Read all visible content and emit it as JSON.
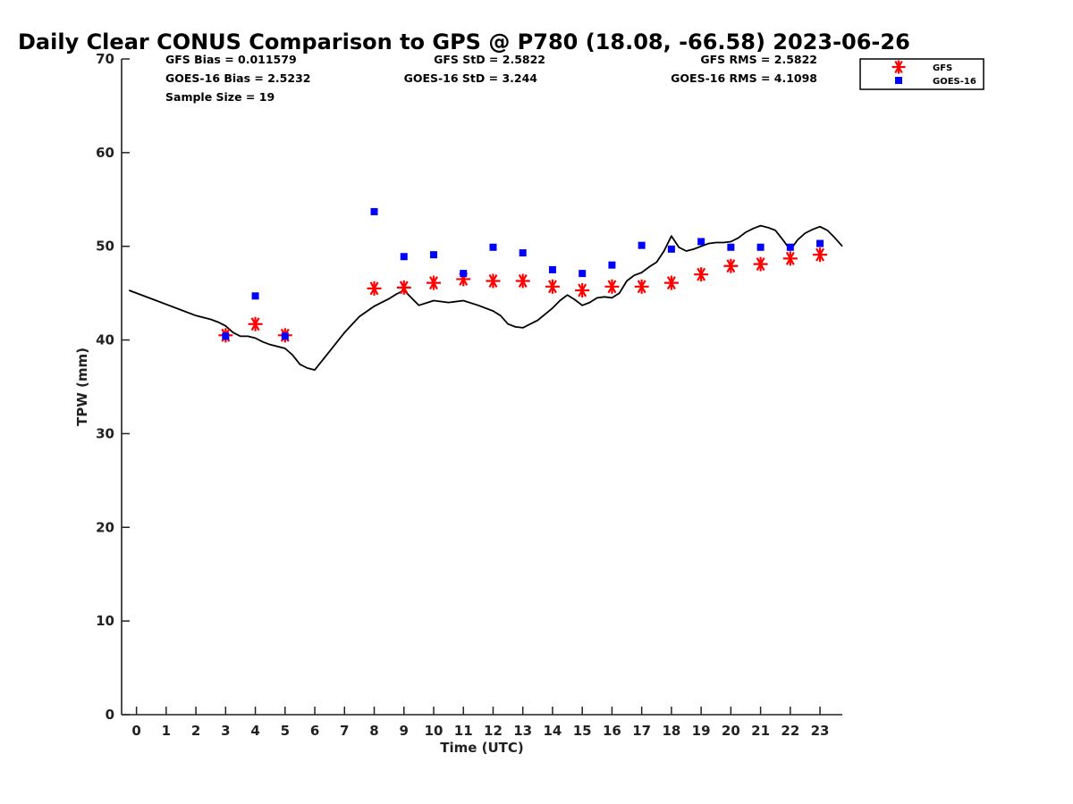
{
  "chart_data": {
    "type": "scatter",
    "title": "Daily Clear CONUS Comparison to GPS @ P780 (18.08, -66.58) 2023-06-26",
    "xlabel": "Time (UTC)",
    "ylabel": "TPW (mm)",
    "xlim": [
      -0.5,
      23.75
    ],
    "ylim": [
      0,
      70
    ],
    "x_ticks": [
      0,
      1,
      2,
      3,
      4,
      5,
      6,
      7,
      8,
      9,
      10,
      11,
      12,
      13,
      14,
      15,
      16,
      17,
      18,
      19,
      20,
      21,
      22,
      23
    ],
    "y_ticks": [
      0,
      10,
      20,
      30,
      40,
      50,
      60,
      70
    ],
    "grid": false,
    "legend_position": "top-right",
    "stats": {
      "gfs_bias": "GFS Bias = 0.011579",
      "goes_bias": "GOES-16 Bias = 2.5232",
      "sample_size": "Sample Size = 19",
      "gfs_std": "GFS StD = 2.5822",
      "goes_std": "GOES-16 StD = 3.244",
      "gfs_rms": "GFS RMS = 2.5822",
      "goes_rms": "GOES-16 RMS = 4.1098"
    },
    "gps_line": {
      "color": "#000000",
      "x": [
        -0.25,
        0,
        0.5,
        1,
        1.5,
        2,
        2.5,
        2.75,
        3,
        3.25,
        3.5,
        3.75,
        4,
        4.25,
        4.5,
        4.75,
        5,
        5.25,
        5.5,
        5.75,
        6,
        6.5,
        7,
        7.5,
        8,
        8.25,
        8.5,
        8.75,
        9,
        9.5,
        10,
        10.5,
        11,
        11.5,
        12,
        12.25,
        12.5,
        12.75,
        13,
        13.5,
        14,
        14.25,
        14.5,
        14.75,
        15,
        15.25,
        15.5,
        15.75,
        16,
        16.25,
        16.5,
        16.75,
        17,
        17.25,
        17.5,
        17.75,
        18,
        18.25,
        18.5,
        18.75,
        19,
        19.25,
        19.5,
        19.75,
        20,
        20.25,
        20.5,
        20.75,
        21,
        21.25,
        21.5,
        21.75,
        22,
        22.25,
        22.5,
        22.75,
        23,
        23.25,
        23.5,
        23.75
      ],
      "y": [
        45.3,
        45.0,
        44.4,
        43.8,
        43.2,
        42.6,
        42.2,
        41.9,
        41.5,
        40.8,
        40.4,
        40.4,
        40.2,
        39.8,
        39.5,
        39.3,
        39.1,
        38.4,
        37.4,
        37.0,
        36.8,
        38.8,
        40.8,
        42.5,
        43.6,
        44.0,
        44.4,
        44.9,
        45.3,
        43.7,
        44.2,
        44.0,
        44.2,
        43.7,
        43.1,
        42.6,
        41.7,
        41.4,
        41.3,
        42.1,
        43.4,
        44.2,
        44.8,
        44.3,
        43.7,
        44.0,
        44.5,
        44.6,
        44.5,
        45.0,
        46.3,
        46.9,
        47.2,
        47.8,
        48.3,
        49.5,
        51.1,
        49.9,
        49.5,
        49.7,
        50.0,
        50.3,
        50.4,
        50.4,
        50.5,
        50.9,
        51.5,
        51.9,
        52.2,
        52.0,
        51.7,
        50.7,
        49.6,
        50.7,
        51.4,
        51.8,
        52.1,
        51.7,
        50.9,
        50.0
      ]
    },
    "series": [
      {
        "name": "GFS",
        "marker": "asterisk",
        "color": "#ff0000",
        "x": [
          3,
          4,
          5,
          8,
          9,
          10,
          11,
          12,
          13,
          14,
          15,
          16,
          17,
          18,
          19,
          20,
          21,
          22,
          23
        ],
        "y": [
          40.5,
          41.7,
          40.5,
          45.5,
          45.6,
          46.1,
          46.5,
          46.3,
          46.3,
          45.7,
          45.3,
          45.7,
          45.7,
          46.1,
          47.0,
          47.9,
          48.1,
          48.7,
          49.1
        ]
      },
      {
        "name": "GOES-16",
        "marker": "square",
        "color": "#0000ff",
        "x": [
          3,
          4,
          5,
          8,
          9,
          10,
          11,
          12,
          13,
          14,
          15,
          16,
          17,
          18,
          19,
          20,
          21,
          22,
          23
        ],
        "y": [
          40.4,
          44.7,
          40.4,
          53.7,
          48.9,
          49.1,
          47.1,
          49.9,
          49.3,
          47.5,
          47.1,
          48.0,
          50.1,
          49.7,
          50.5,
          49.9,
          49.9,
          49.9,
          50.3
        ]
      }
    ]
  }
}
